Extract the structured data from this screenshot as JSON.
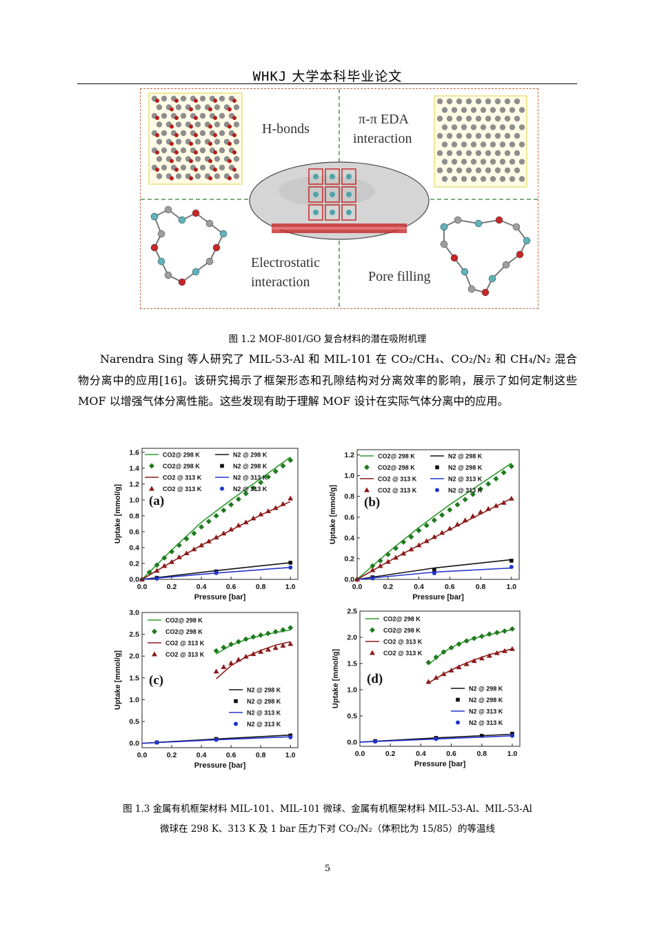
{
  "header": {
    "latin": "WHKJ",
    "title": "大学本科毕业论文"
  },
  "figure_1_2": {
    "labels": {
      "hbonds": "H-bonds",
      "pipi_1": "π-π EDA",
      "pipi_2": "interaction",
      "electro_1": "Electrostatic",
      "electro_2": "interaction",
      "pore": "Pore filling"
    },
    "caption": "图 1.2  MOF-801/GO 复合材料的潜在吸附机理"
  },
  "paragraph": {
    "text": "Narendra  Sing 等人研究了 MIL-53-Al 和 MIL-101 在 CO₂/CH₄、CO₂/N₂ 和 CH₄/N₂ 混合物分离中的应用[16]。该研究揭示了框架形态和孔隙结构对分离效率的影响，展示了如何定制这些 MOF 以增强气体分离性能。这些发现有助于理解 MOF 设计在实际气体分离中的应用。"
  },
  "chart_data": [
    {
      "type": "line",
      "panel": "(a)",
      "xlabel": "Pressure [bar]",
      "ylabel": "Uptake [mmol/g]",
      "xlim": [
        0,
        1.05
      ],
      "ylim": [
        0,
        1.65
      ],
      "xticks": [
        "0.0",
        "0.2",
        "0.4",
        "0.6",
        "0.8",
        "1.0"
      ],
      "yticks": [
        "0.0",
        "0.2",
        "0.4",
        "0.6",
        "0.8",
        "1.0",
        "1.2",
        "1.4",
        "1.6"
      ],
      "legend_position": "top",
      "series": [
        {
          "name": "CO2@ 298 K",
          "kind": "line",
          "color": "#2e9a2e",
          "x": [
            0,
            0.2,
            0.4,
            0.6,
            0.8,
            1.0
          ],
          "y": [
            0,
            0.37,
            0.72,
            1.0,
            1.27,
            1.54
          ]
        },
        {
          "name": "CO2@ 298 K",
          "kind": "diamond",
          "color": "#1f7a1f",
          "x": [
            0.0,
            0.05,
            0.1,
            0.15,
            0.2,
            0.25,
            0.3,
            0.35,
            0.4,
            0.45,
            0.5,
            0.55,
            0.6,
            0.65,
            0.7,
            0.75,
            0.8,
            0.85,
            0.9,
            0.95,
            1.0
          ],
          "y": [
            0.0,
            0.09,
            0.18,
            0.27,
            0.35,
            0.43,
            0.51,
            0.58,
            0.66,
            0.73,
            0.8,
            0.87,
            0.94,
            1.01,
            1.08,
            1.15,
            1.22,
            1.29,
            1.36,
            1.43,
            1.5
          ]
        },
        {
          "name": "CO2 @ 313 K",
          "kind": "line",
          "color": "#8b1a1a",
          "x": [
            0,
            0.2,
            0.4,
            0.6,
            0.8,
            1.0
          ],
          "y": [
            0,
            0.22,
            0.43,
            0.62,
            0.81,
            0.98
          ]
        },
        {
          "name": "CO2 @ 313 K",
          "kind": "triangle",
          "color": "#8b1a1a",
          "x": [
            0.0,
            0.1,
            0.15,
            0.2,
            0.25,
            0.3,
            0.35,
            0.4,
            0.45,
            0.5,
            0.55,
            0.6,
            0.65,
            0.7,
            0.75,
            0.8,
            0.85,
            0.9,
            0.95,
            1.0
          ],
          "y": [
            0.0,
            0.11,
            0.17,
            0.22,
            0.28,
            0.33,
            0.38,
            0.43,
            0.48,
            0.53,
            0.58,
            0.63,
            0.68,
            0.72,
            0.77,
            0.82,
            0.86,
            0.9,
            0.95,
            1.02
          ]
        },
        {
          "name": "N2 @ 298 K",
          "kind": "line",
          "color": "#111111",
          "x": [
            0,
            0.5,
            1.0
          ],
          "y": [
            0,
            0.11,
            0.21
          ]
        },
        {
          "name": "N2 @ 298 K",
          "kind": "square",
          "color": "#111111",
          "x": [
            0.1,
            0.5,
            1.0
          ],
          "y": [
            0.02,
            0.1,
            0.21
          ]
        },
        {
          "name": "N2 @ 313 K",
          "kind": "line",
          "color": "#2233cc",
          "x": [
            0,
            0.5,
            1.0
          ],
          "y": [
            0,
            0.08,
            0.15
          ]
        },
        {
          "name": "N2 @ 313 K",
          "kind": "circle",
          "color": "#2233cc",
          "x": [
            0.1,
            0.5,
            1.0
          ],
          "y": [
            0.01,
            0.08,
            0.15
          ]
        }
      ]
    },
    {
      "type": "line",
      "panel": "(b)",
      "xlabel": "Pressure [bar]",
      "ylabel": "Uptake [mmol/g]",
      "xlim": [
        0,
        1.05
      ],
      "ylim": [
        0,
        1.25
      ],
      "xticks": [
        "0.0",
        "0.2",
        "0.4",
        "0.6",
        "0.8",
        "1.0"
      ],
      "yticks": [
        "0.0",
        "0.2",
        "0.4",
        "0.6",
        "0.8",
        "1.0",
        "1.2"
      ],
      "legend_position": "top",
      "series": [
        {
          "name": "CO2@ 298 K",
          "kind": "line",
          "color": "#2e9a2e",
          "x": [
            0,
            0.2,
            0.4,
            0.6,
            0.8,
            1.0
          ],
          "y": [
            0,
            0.26,
            0.5,
            0.72,
            0.92,
            1.12
          ]
        },
        {
          "name": "CO2@ 298 K",
          "kind": "diamond",
          "color": "#1f7a1f",
          "x": [
            0.0,
            0.1,
            0.15,
            0.2,
            0.25,
            0.3,
            0.35,
            0.4,
            0.45,
            0.5,
            0.55,
            0.6,
            0.65,
            0.7,
            0.75,
            0.8,
            0.85,
            0.9,
            0.95,
            1.0
          ],
          "y": [
            0.0,
            0.13,
            0.18,
            0.24,
            0.3,
            0.36,
            0.41,
            0.47,
            0.52,
            0.57,
            0.62,
            0.67,
            0.72,
            0.77,
            0.82,
            0.87,
            0.92,
            0.97,
            1.03,
            1.09
          ]
        },
        {
          "name": "CO2 @ 313 K",
          "kind": "line",
          "color": "#8b1a1a",
          "x": [
            0,
            0.2,
            0.4,
            0.6,
            0.8,
            1.0
          ],
          "y": [
            0,
            0.17,
            0.33,
            0.48,
            0.63,
            0.78
          ]
        },
        {
          "name": "CO2 @ 313 K",
          "kind": "triangle",
          "color": "#8b1a1a",
          "x": [
            0.0,
            0.1,
            0.15,
            0.2,
            0.25,
            0.3,
            0.35,
            0.4,
            0.45,
            0.5,
            0.55,
            0.6,
            0.65,
            0.7,
            0.75,
            0.8,
            0.85,
            0.9,
            0.95,
            1.0
          ],
          "y": [
            0.0,
            0.09,
            0.13,
            0.17,
            0.21,
            0.25,
            0.29,
            0.33,
            0.37,
            0.41,
            0.45,
            0.49,
            0.53,
            0.57,
            0.61,
            0.65,
            0.68,
            0.71,
            0.74,
            0.78
          ]
        },
        {
          "name": "N2 @ 298 K",
          "kind": "line",
          "color": "#111111",
          "x": [
            0,
            0.5,
            1.0
          ],
          "y": [
            0,
            0.11,
            0.19
          ]
        },
        {
          "name": "N2 @ 298 K",
          "kind": "square",
          "color": "#111111",
          "x": [
            0.1,
            0.5,
            1.0
          ],
          "y": [
            0.02,
            0.09,
            0.18
          ]
        },
        {
          "name": "N2 @ 313 K",
          "kind": "line",
          "color": "#2233cc",
          "x": [
            0,
            0.5,
            1.0
          ],
          "y": [
            0,
            0.07,
            0.11
          ]
        },
        {
          "name": "N2 @ 313 K",
          "kind": "circle",
          "color": "#2233cc",
          "x": [
            0.1,
            0.5,
            1.0
          ],
          "y": [
            0.01,
            0.06,
            0.12
          ]
        }
      ]
    },
    {
      "type": "line",
      "panel": "(c)",
      "xlabel": "Pressure [bar]",
      "ylabel": "Uptake [mmol/g]",
      "xlim": [
        0,
        1.05
      ],
      "ylim": [
        -0.1,
        3.0
      ],
      "xticks": [
        "0.0",
        "0.2",
        "0.4",
        "0.6",
        "0.8",
        "1.0"
      ],
      "yticks": [
        "0.0",
        "0.5",
        "1.0",
        "1.5",
        "2.0",
        "2.5",
        "3.0"
      ],
      "legend_position": "top-left and right-middle",
      "series": [
        {
          "name": "CO2@ 298 K",
          "kind": "line",
          "color": "#2e9a2e",
          "x": [
            0.5,
            0.6,
            0.7,
            0.8,
            0.9,
            1.0
          ],
          "y": [
            2.05,
            2.25,
            2.38,
            2.47,
            2.54,
            2.6
          ]
        },
        {
          "name": "CO2@ 298 K",
          "kind": "diamond",
          "color": "#1f7a1f",
          "x": [
            0.5,
            0.55,
            0.6,
            0.65,
            0.7,
            0.75,
            0.8,
            0.85,
            0.9,
            0.95,
            1.0
          ],
          "y": [
            2.12,
            2.2,
            2.27,
            2.33,
            2.39,
            2.44,
            2.48,
            2.52,
            2.56,
            2.6,
            2.65
          ]
        },
        {
          "name": "CO2 @ 313 K",
          "kind": "line",
          "color": "#8b1a1a",
          "x": [
            0.5,
            0.6,
            0.7,
            0.8,
            0.9,
            1.0
          ],
          "y": [
            1.48,
            1.78,
            1.98,
            2.13,
            2.25,
            2.33
          ]
        },
        {
          "name": "CO2 @ 313 K",
          "kind": "triangle",
          "color": "#8b1a1a",
          "x": [
            0.5,
            0.55,
            0.6,
            0.65,
            0.7,
            0.75,
            0.8,
            0.85,
            0.9,
            0.95,
            1.0
          ],
          "y": [
            1.65,
            1.75,
            1.84,
            1.92,
            1.99,
            2.05,
            2.1,
            2.15,
            2.19,
            2.24,
            2.28
          ]
        },
        {
          "name": "N2 @ 298 K",
          "kind": "line",
          "color": "#111111",
          "x": [
            0,
            0.5,
            1.0
          ],
          "y": [
            0,
            0.1,
            0.19
          ]
        },
        {
          "name": "N2 @ 298 K",
          "kind": "square",
          "color": "#111111",
          "x": [
            0.1,
            0.5,
            1.0
          ],
          "y": [
            0.02,
            0.1,
            0.18
          ]
        },
        {
          "name": "N2 @ 313 K",
          "kind": "line",
          "color": "#2233cc",
          "x": [
            0,
            0.5,
            1.0
          ],
          "y": [
            0,
            0.08,
            0.15
          ]
        },
        {
          "name": "N2 @ 313 K",
          "kind": "circle",
          "color": "#2233cc",
          "x": [
            0.1,
            0.5,
            1.0
          ],
          "y": [
            0.02,
            0.08,
            0.14
          ]
        }
      ]
    },
    {
      "type": "line",
      "panel": "(d)",
      "xlabel": "Pressure [bar]",
      "ylabel": "Uptake [mmol/g]",
      "xlim": [
        0,
        1.05
      ],
      "ylim": [
        -0.08,
        2.5
      ],
      "xticks": [
        "0.0",
        "0.2",
        "0.4",
        "0.6",
        "0.8",
        "1.0"
      ],
      "yticks": [
        "0.0",
        "0.5",
        "1.0",
        "1.5",
        "2.0",
        "2.5"
      ],
      "legend_position": "top-left and right-middle",
      "series": [
        {
          "name": "CO2@ 298 K",
          "kind": "line",
          "color": "#2e9a2e",
          "x": [
            0.45,
            0.55,
            0.65,
            0.75,
            0.85,
            1.0
          ],
          "y": [
            1.48,
            1.72,
            1.88,
            1.98,
            2.05,
            2.15
          ]
        },
        {
          "name": "CO2@ 298 K",
          "kind": "diamond",
          "color": "#1f7a1f",
          "x": [
            0.45,
            0.5,
            0.55,
            0.6,
            0.65,
            0.7,
            0.75,
            0.8,
            0.85,
            0.9,
            0.95,
            1.0
          ],
          "y": [
            1.52,
            1.62,
            1.72,
            1.8,
            1.87,
            1.93,
            1.98,
            2.02,
            2.06,
            2.09,
            2.12,
            2.16
          ]
        },
        {
          "name": "CO2 @ 313 K",
          "kind": "line",
          "color": "#8b1a1a",
          "x": [
            0.45,
            0.55,
            0.65,
            0.75,
            0.85,
            1.0
          ],
          "y": [
            1.13,
            1.3,
            1.45,
            1.57,
            1.67,
            1.78
          ]
        },
        {
          "name": "CO2 @ 313 K",
          "kind": "triangle",
          "color": "#8b1a1a",
          "x": [
            0.45,
            0.5,
            0.55,
            0.6,
            0.65,
            0.7,
            0.75,
            0.8,
            0.85,
            0.9,
            0.95,
            1.0
          ],
          "y": [
            1.15,
            1.23,
            1.3,
            1.37,
            1.43,
            1.49,
            1.55,
            1.6,
            1.65,
            1.7,
            1.74,
            1.78
          ]
        },
        {
          "name": "N2 @ 298 K",
          "kind": "line",
          "color": "#111111",
          "x": [
            0,
            0.5,
            1.0
          ],
          "y": [
            0,
            0.08,
            0.15
          ]
        },
        {
          "name": "N2 @ 298 K",
          "kind": "square",
          "color": "#111111",
          "x": [
            0.1,
            0.5,
            0.8,
            1.0
          ],
          "y": [
            0.02,
            0.08,
            0.12,
            0.16
          ]
        },
        {
          "name": "N2 @ 313 K",
          "kind": "line",
          "color": "#2233cc",
          "x": [
            0,
            0.5,
            1.0
          ],
          "y": [
            0,
            0.06,
            0.12
          ]
        },
        {
          "name": "N2 @ 313 K",
          "kind": "circle",
          "color": "#2233cc",
          "x": [
            0.1,
            0.5,
            1.0
          ],
          "y": [
            0.01,
            0.06,
            0.12
          ]
        }
      ]
    }
  ],
  "caption_1_3": {
    "line1": "图 1.3  金属有机框架材料 MIL-101、MIL-101 微球、金属有机框架材料 MIL-53-Al、MIL-53-Al",
    "line2": "微球在 298  K、313  K 及 1  bar 压力下对 CO₂/N₂（体积比为 15/85）的等温线"
  },
  "page_number": "5"
}
